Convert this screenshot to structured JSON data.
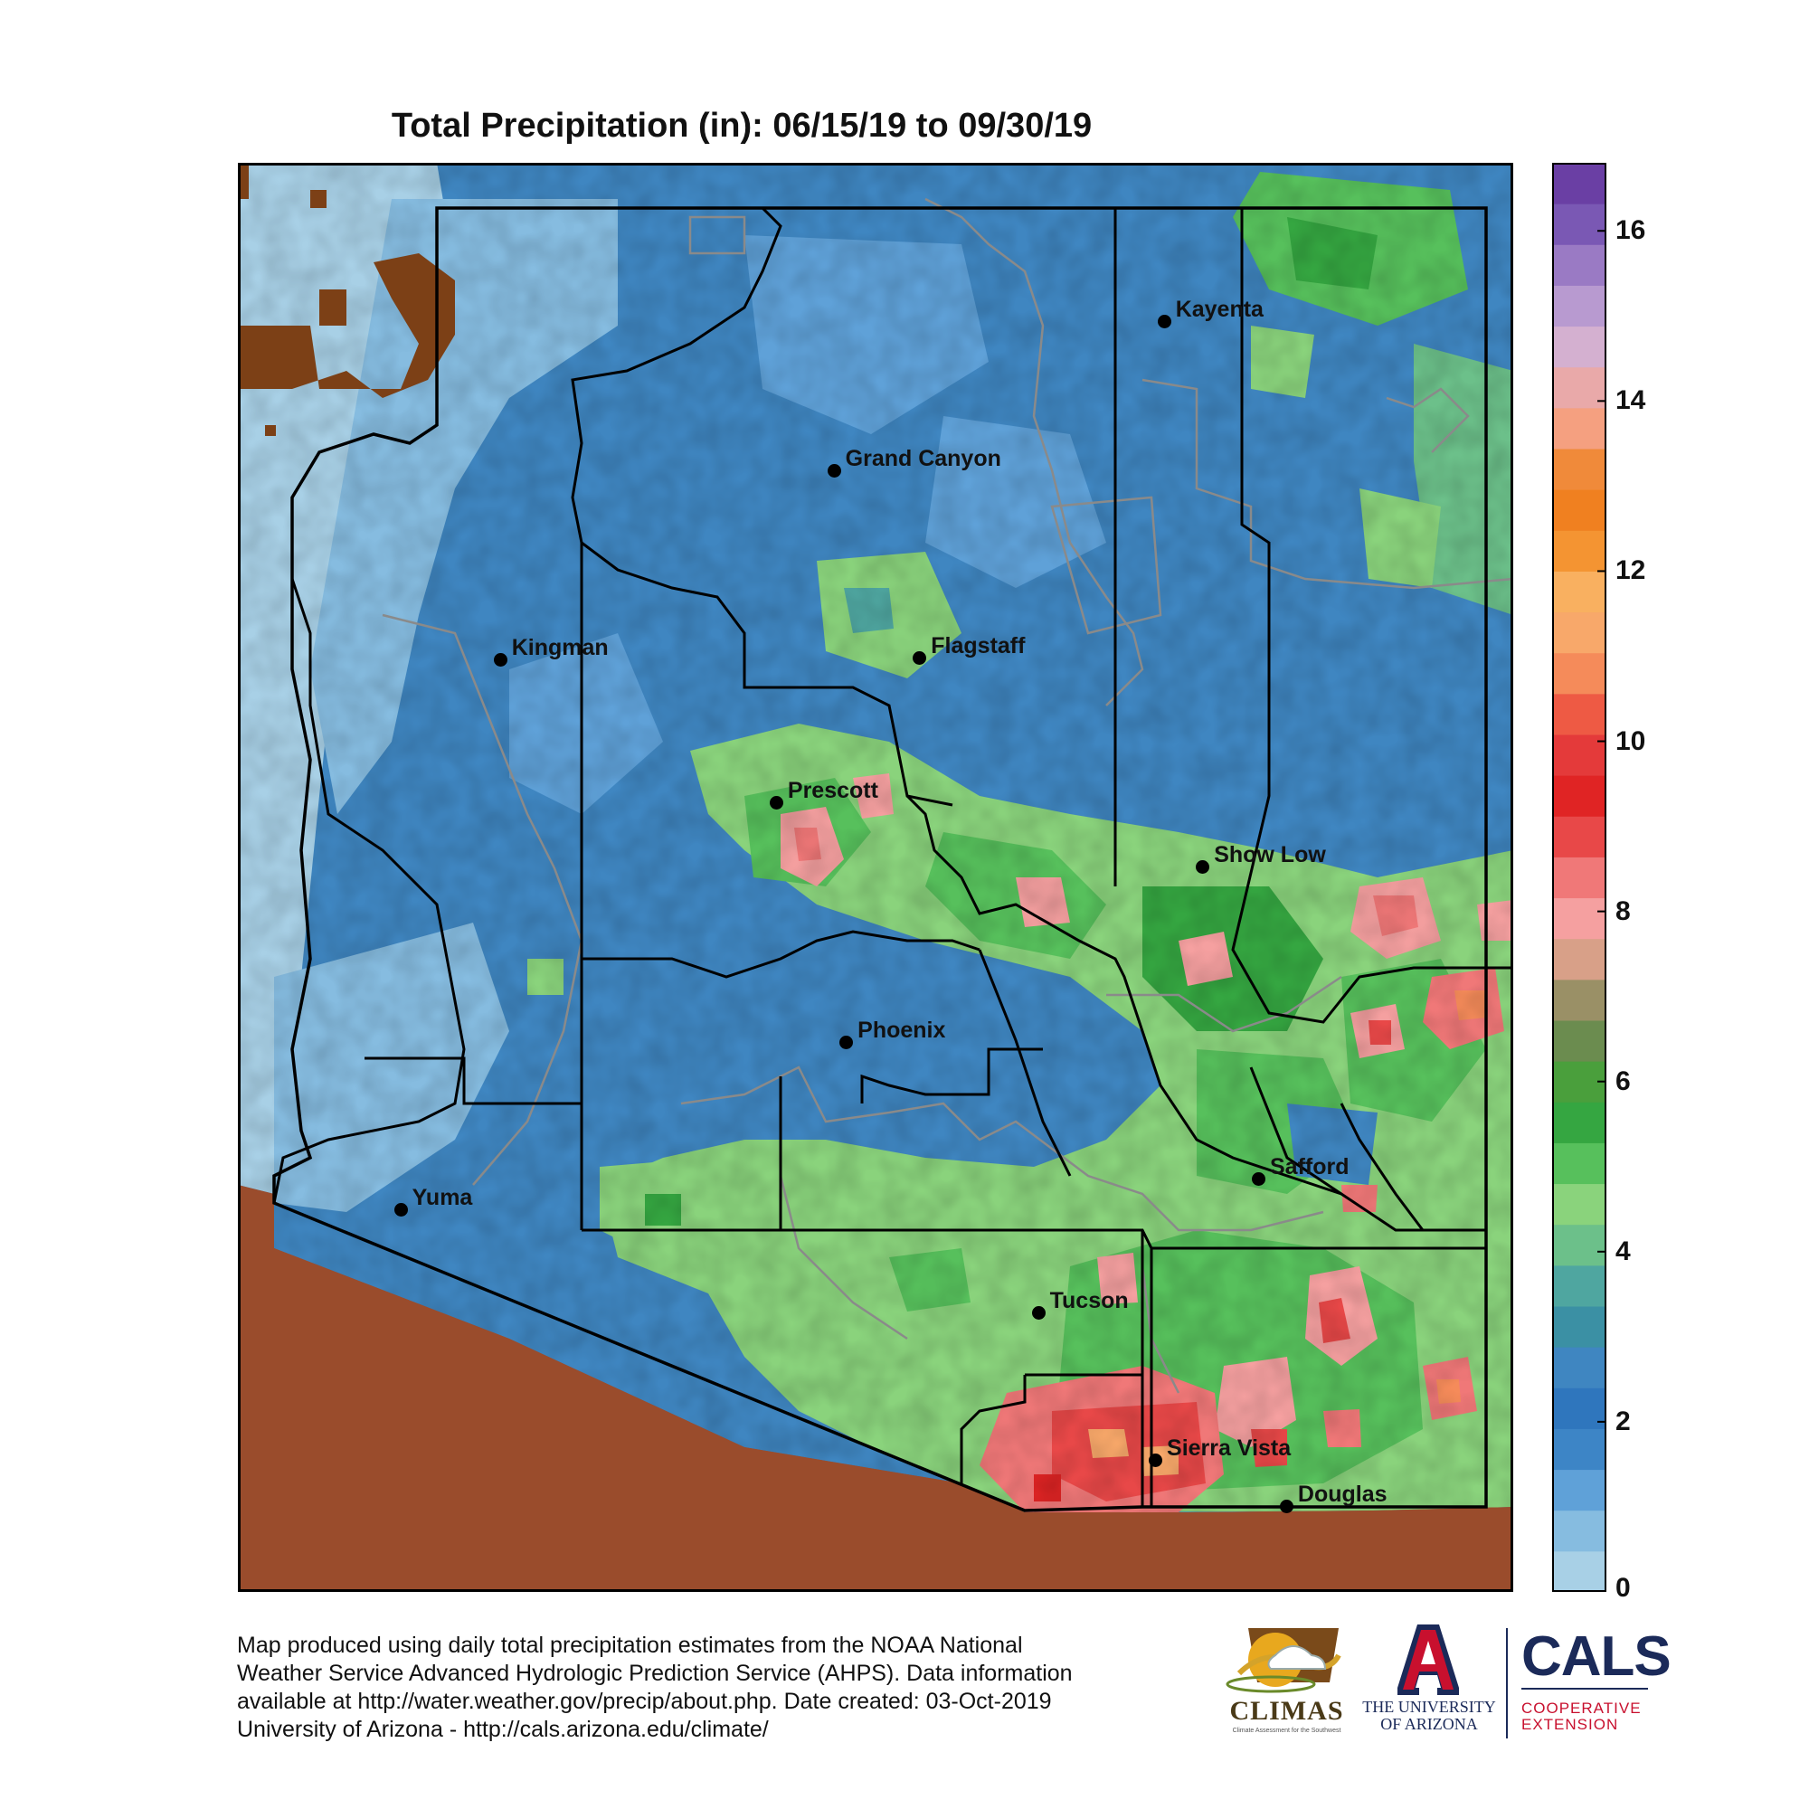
{
  "title": "Total Precipitation (in): 06/15/19 to 09/30/19",
  "legend": {
    "units": "in",
    "min": 0,
    "max": 16.8,
    "ticks": [
      {
        "value": 0,
        "label": "0"
      },
      {
        "value": 2,
        "label": "2"
      },
      {
        "value": 4,
        "label": "4"
      },
      {
        "value": 6,
        "label": "6"
      },
      {
        "value": 8,
        "label": "8"
      },
      {
        "value": 10,
        "label": "10"
      },
      {
        "value": 12,
        "label": "12"
      },
      {
        "value": 14,
        "label": "14"
      },
      {
        "value": 16,
        "label": "16"
      }
    ],
    "color_steps": [
      "#a8d0e6",
      "#86bce0",
      "#5fa1d8",
      "#3d85c6",
      "#2f76bd",
      "#3f86c1",
      "#3b90a4",
      "#4fa6a0",
      "#6cc08a",
      "#8ad37c",
      "#57c05c",
      "#35a641",
      "#4a9f3c",
      "#6b8c4f",
      "#9a9066",
      "#d8a088",
      "#f5a0a0",
      "#f07878",
      "#e84848",
      "#e02424",
      "#e43a3a",
      "#ee5a44",
      "#f58b5a",
      "#f8a86a",
      "#f9b060",
      "#f49432",
      "#f08020",
      "#f08a3a",
      "#f5a080",
      "#e9a9a9",
      "#d4b0d0",
      "#b89ad0",
      "#9a7ac4",
      "#7a58b4",
      "#6a3fa4"
    ]
  },
  "cities": [
    {
      "name": "Kayenta",
      "lon": -110.25,
      "lat": 36.73
    },
    {
      "name": "Grand Canyon",
      "lon": -112.14,
      "lat": 36.05
    },
    {
      "name": "Kingman",
      "lon": -114.05,
      "lat": 35.19
    },
    {
      "name": "Flagstaff",
      "lon": -111.65,
      "lat": 35.2
    },
    {
      "name": "Prescott",
      "lon": -112.47,
      "lat": 34.54
    },
    {
      "name": "Show Low",
      "lon": -110.03,
      "lat": 34.25
    },
    {
      "name": "Phoenix",
      "lon": -112.07,
      "lat": 33.45
    },
    {
      "name": "Safford",
      "lon": -109.71,
      "lat": 32.83
    },
    {
      "name": "Yuma",
      "lon": -114.62,
      "lat": 32.69
    },
    {
      "name": "Tucson",
      "lon": -110.97,
      "lat": 32.22
    },
    {
      "name": "Sierra Vista",
      "lon": -110.3,
      "lat": 31.55
    },
    {
      "name": "Douglas",
      "lon": -109.55,
      "lat": 31.34
    }
  ],
  "map_colors": {
    "outside_country": "#9a4c2c",
    "no_data_pixel": "#7c4016",
    "state_line": "#000000",
    "county_line": "#000000",
    "land_boundary": "#8a8a8a"
  },
  "footer": {
    "line1": "Map produced using daily total precipitation estimates from the NOAA National",
    "line2": "Weather Service Advanced Hydrologic Prediction Service (AHPS). Data information",
    "line3": "available at http://water.weather.gov/precip/about.php. Date created: 03-Oct-2019",
    "line4": "University of Arizona - http://cals.arizona.edu/climate/"
  },
  "logos": {
    "climas": "CLIMAS",
    "climas_sub": "Climate Assessment for the Southwest",
    "ua_line1": "THE UNIVERSITY",
    "ua_line2": "OF ARIZONA",
    "cals": "CALS",
    "cals_sub1": "COOPERATIVE",
    "cals_sub2": "EXTENSION"
  }
}
